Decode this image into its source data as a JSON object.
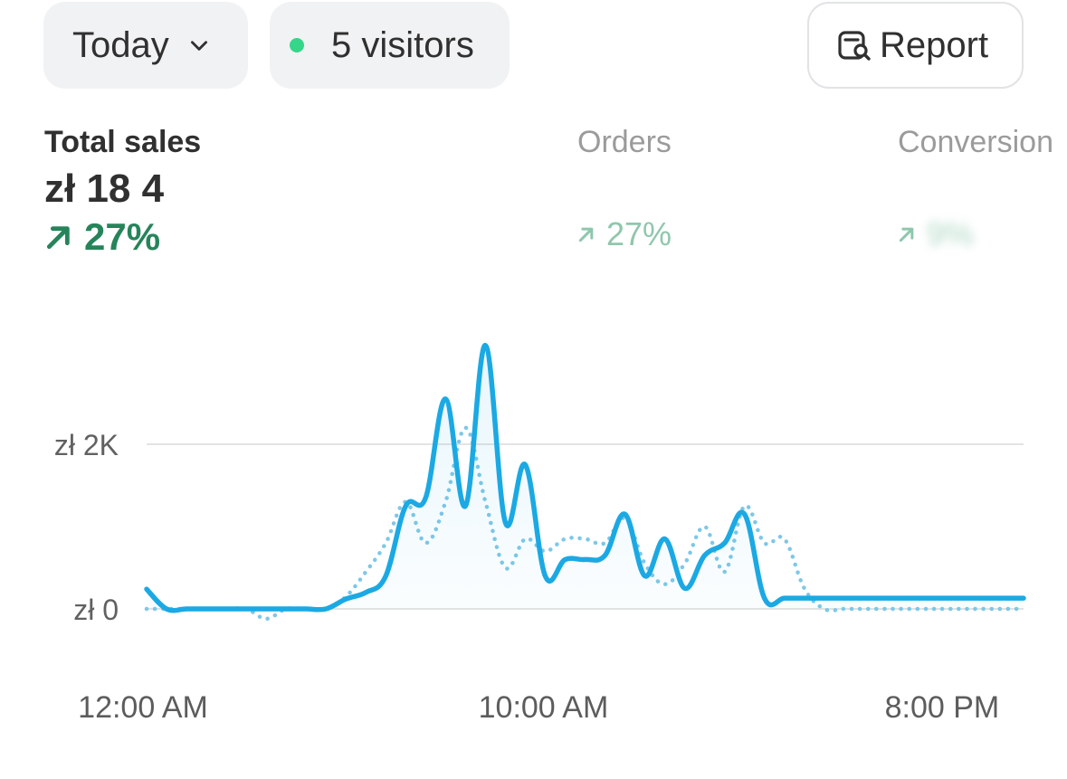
{
  "filters": {
    "period_label": "Today",
    "visitors_label": "5 visitors",
    "report_label": "Report"
  },
  "metrics": [
    {
      "label": "Total sales",
      "value": "zł 18 4",
      "delta": "27%"
    },
    {
      "label": "Orders",
      "value": "",
      "delta": "27%"
    },
    {
      "label": "Conversion",
      "value": "",
      "delta": "9%"
    }
  ],
  "colors": {
    "accent_line": "#1ba9e3",
    "comparison_line": "#7ec8e6",
    "positive": "#26845a",
    "live_dot": "#36d68a"
  },
  "chart_data": {
    "type": "line",
    "y_ticks": [
      "zł 0",
      "zł 2K"
    ],
    "x_ticks": [
      "12:00 AM",
      "10:00 AM",
      "8:00 PM"
    ],
    "ylim": [
      0,
      4000
    ],
    "x": [
      "12:00 AM",
      "12:30 AM",
      "1:00 AM",
      "1:30 AM",
      "2:00 AM",
      "2:30 AM",
      "3:00 AM",
      "3:30 AM",
      "4:00 AM",
      "4:30 AM",
      "5:00 AM",
      "5:30 AM",
      "6:00 AM",
      "6:30 AM",
      "7:00 AM",
      "7:30 AM",
      "8:00 AM",
      "8:30 AM",
      "9:00 AM",
      "9:30 AM",
      "10:00 AM",
      "10:30 AM",
      "11:00 AM",
      "11:30 AM",
      "12:00 PM",
      "12:30 PM",
      "1:00 PM",
      "1:30 PM",
      "2:00 PM",
      "2:30 PM",
      "3:00 PM",
      "3:30 PM",
      "4:00 PM",
      "4:30 PM",
      "5:00 PM",
      "5:30 PM",
      "6:00 PM",
      "6:30 PM",
      "7:00 PM",
      "7:30 PM",
      "8:00 PM",
      "8:30 PM",
      "9:00 PM",
      "9:30 PM",
      "10:00 PM"
    ],
    "series": [
      {
        "style": "solid",
        "values": [
          240,
          0,
          0,
          0,
          0,
          0,
          0,
          0,
          0,
          0,
          120,
          200,
          400,
          1250,
          1350,
          2550,
          1250,
          3200,
          1050,
          1750,
          400,
          600,
          600,
          650,
          1150,
          400,
          850,
          250,
          650,
          800,
          1150,
          130,
          130,
          130,
          130,
          130,
          130,
          130,
          130,
          130,
          130,
          130,
          130,
          130,
          130
        ]
      },
      {
        "style": "dotted",
        "values": [
          0,
          0,
          0,
          0,
          0,
          0,
          -120,
          0,
          0,
          0,
          150,
          450,
          800,
          1300,
          800,
          1300,
          2200,
          1300,
          500,
          850,
          700,
          850,
          850,
          800,
          1100,
          550,
          300,
          550,
          1000,
          450,
          1250,
          800,
          850,
          250,
          0,
          0,
          0,
          0,
          0,
          0,
          0,
          0,
          0,
          0,
          0
        ]
      }
    ]
  }
}
